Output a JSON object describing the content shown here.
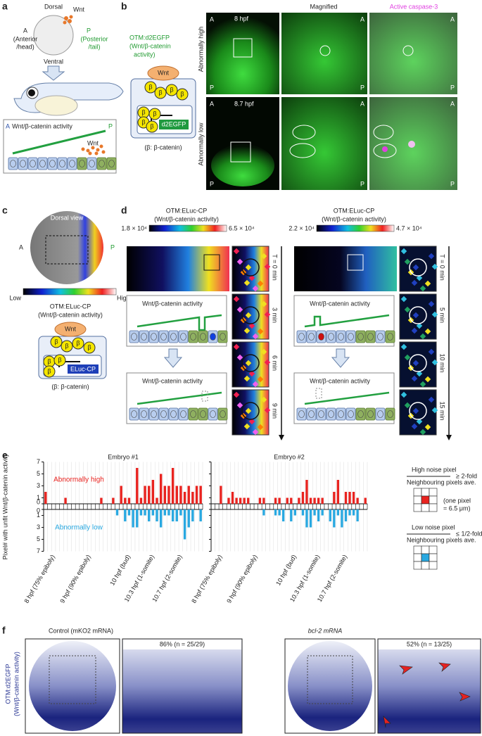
{
  "panel_letters": {
    "a": "a",
    "b": "b",
    "c": "c",
    "d": "d",
    "e": "e",
    "f": "f"
  },
  "axis_letters": {
    "anterior": "A",
    "posterior": "P"
  },
  "beta": "β",
  "wnt": "Wnt",
  "wnt_activity": "Wnt/β-catenin activity",
  "a": {
    "dorsal": "Dorsal",
    "ventral": "Ventral",
    "anterior_1": "(Anterior",
    "anterior_2": "/head)",
    "posterior_1": "(Posterior",
    "posterior_2": "/tail)"
  },
  "b": {
    "reporter": "OTM:d2EGFP",
    "reporter_note_1": "(Wnt/β-catenin",
    "reporter_note_2": "activity)",
    "gene": "d2EGFP",
    "beta_note": "(β: β-catenin)",
    "col_magnified": "Magnified",
    "col_caspase": "Active caspase-3",
    "row_high": "Abnormally high",
    "row_low": "Abnormally low",
    "time_high": "8 hpf",
    "time_low": "8.7 hpf"
  },
  "c": {
    "view": "Dorsal view",
    "low": "Low",
    "high": "High",
    "reporter": "OTM:ELuc-CP",
    "reporter_note": "(Wnt/β-catenin activity)",
    "gene": "ELuc-CP",
    "beta_note": "(β: β-catenin)"
  },
  "d": {
    "left": {
      "reporter": "OTM:ELuc-CP",
      "reporter_note": "(Wnt/β-catenin activity)",
      "scale_min": "1.8 × 10⁴",
      "scale_max": "6.5 × 10⁴",
      "times": [
        "T = 0 min",
        "3 min",
        "6 min",
        "9 min"
      ]
    },
    "right": {
      "reporter": "OTM:ELuc-CP",
      "reporter_note": "(Wnt/β-catenin activity)",
      "scale_min": "2.2 × 10⁴",
      "scale_max": "4.7 × 10⁴",
      "times": [
        "T = 0 min",
        "5 min",
        "10 min",
        "15 min"
      ]
    }
  },
  "chart_data": [
    {
      "type": "bar",
      "title": "Embryo #1",
      "ylabel": "Pixel# with unfit Wnt/β-catenin activity",
      "categories": [
        null,
        null,
        "8 hpf (75% epiboly)",
        null,
        null,
        null,
        null,
        null,
        null,
        null,
        null,
        "9 hpf (90% epiboly)",
        null,
        null,
        null,
        null,
        null,
        null,
        null,
        null,
        null,
        "10 hpf (bud)",
        null,
        null,
        null,
        null,
        null,
        "10.3 hpf (1-somite)",
        null,
        null,
        null,
        null,
        null,
        null,
        "10.7 hpf (2-somite)",
        null,
        null,
        null,
        null,
        null
      ],
      "series": [
        {
          "name": "Abnormally high",
          "color": "#e8231f",
          "values": [
            2,
            0,
            0,
            0,
            0,
            1,
            0,
            0,
            0,
            0,
            0,
            0,
            0,
            0,
            1,
            0,
            0,
            1,
            0,
            3,
            1,
            1,
            0,
            6,
            1,
            3,
            3,
            4,
            1,
            5,
            3,
            3,
            6,
            3,
            3,
            2,
            3,
            2,
            3,
            3
          ]
        },
        {
          "name": "Abnormally low",
          "color": "#29a8e0",
          "values": [
            0,
            0,
            0,
            0,
            0,
            0,
            0,
            0,
            0,
            0,
            0,
            0,
            0,
            0,
            0,
            0,
            0,
            0,
            1,
            0,
            2,
            1,
            3,
            3,
            1,
            1,
            2,
            1,
            2,
            3,
            1,
            1,
            2,
            2,
            1,
            5,
            3,
            2,
            0,
            2
          ]
        }
      ],
      "ylim": [
        0,
        7
      ],
      "yticks": [
        0,
        1,
        3,
        5,
        7
      ]
    },
    {
      "type": "bar",
      "title": "Embryo #2",
      "categories": [
        null,
        null,
        "8 hpf (75% epiboly)",
        null,
        null,
        null,
        null,
        null,
        null,
        null,
        null,
        "9 hpf (90% epiboly)",
        null,
        null,
        null,
        null,
        null,
        null,
        null,
        null,
        null,
        "10 hpf (bud)",
        null,
        null,
        null,
        null,
        null,
        "10.3 hpf (1-somite)",
        null,
        null,
        null,
        null,
        null,
        null,
        "10.7 hpf (2-somite)",
        null,
        null,
        null,
        null,
        null
      ],
      "series": [
        {
          "color": "#e8231f",
          "values": [
            0,
            0,
            3,
            0,
            1,
            2,
            1,
            1,
            1,
            1,
            0,
            0,
            1,
            1,
            0,
            0,
            1,
            1,
            0,
            1,
            1,
            0,
            1,
            2,
            4,
            1,
            1,
            1,
            1,
            0,
            0,
            2,
            4,
            0,
            2,
            2,
            2,
            1,
            0,
            1
          ]
        },
        {
          "color": "#29a8e0",
          "values": [
            0,
            0,
            0,
            0,
            0,
            0,
            0,
            0,
            0,
            0,
            0,
            0,
            0,
            1,
            0,
            0,
            1,
            1,
            2,
            0,
            2,
            1,
            0,
            1,
            3,
            3,
            1,
            2,
            1,
            0,
            2,
            3,
            1,
            3,
            2,
            1,
            1,
            2,
            0,
            0
          ]
        }
      ],
      "ylim": [
        0,
        7
      ],
      "yticks": [
        0,
        1,
        3,
        5,
        7
      ]
    }
  ],
  "e_legend": {
    "high": "High noise pixel",
    "neighbours": "Neighbouring pixels ave.",
    "high_rule": "≥ 2-fold",
    "pixel_note_1": "(one pixel",
    "pixel_note_2": "= 6.5 μm)",
    "low": "Low noise pixel",
    "low_rule": "≤ 1/2-fold"
  },
  "f": {
    "ylabel_1": "OTM:d2EGFP",
    "ylabel_2": "(Wnt/β-catenin activity)",
    "control": "Control (mKO2 mRNA)",
    "control_rate": "86% (n = 25/29)",
    "treated": "bcl-2 mRNA",
    "treated_rate": "52% (n = 13/25)"
  }
}
